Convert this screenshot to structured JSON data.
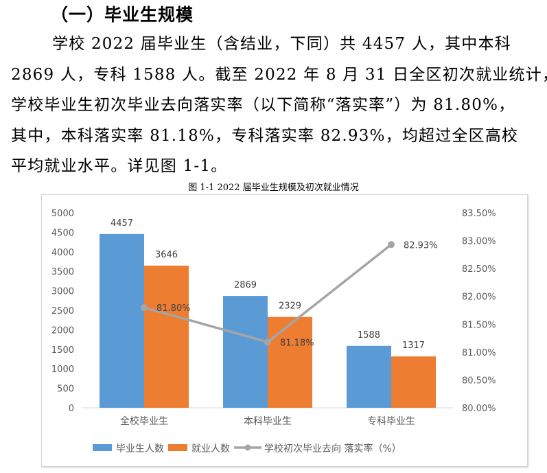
{
  "heading": "（一）毕业生规模",
  "paragraph_lines": [
    "学校 2022 届毕业生（含结业，下同）共 4457 人，其中本科",
    "2869 人，专科 1588 人。截至 2022 年 8 月 31 日全区初次就业统计，",
    "学校毕业生初次毕业去向落实率（以下简称“落实率”）为 81.80%，",
    "其中，本科落实率 81.18%，专科落实率 82.93%，均超过全区高校",
    "平均就业水平。详见图 1-1。"
  ],
  "caption": "图 1-1    2022 届毕业生规模及初次就业情况",
  "chart_data": {
    "type": "bar+line",
    "categories": [
      "全校毕业生",
      "本科毕业生",
      "专科毕业生"
    ],
    "series": [
      {
        "name": "毕业生人数",
        "type": "bar",
        "axis": "left",
        "color": "#5b9bd5",
        "values": [
          4457,
          2869,
          1588
        ],
        "labels": [
          "4457",
          "2869",
          "1588"
        ]
      },
      {
        "name": "就业人数",
        "type": "bar",
        "axis": "left",
        "color": "#ed7d31",
        "values": [
          3646,
          2329,
          1317
        ],
        "labels": [
          "3646",
          "2329",
          "1317"
        ]
      },
      {
        "name": "学校初次毕业去向 落实率（%）",
        "type": "line",
        "axis": "right",
        "color": "#a5a5a5",
        "values": [
          81.8,
          81.18,
          82.93
        ],
        "labels": [
          "81.80%",
          "81.18%",
          "82.93%"
        ]
      }
    ],
    "y_left": {
      "range": [
        0,
        5000
      ],
      "ticks": [
        "0",
        "500",
        "1000",
        "1500",
        "2000",
        "2500",
        "3000",
        "3500",
        "4000",
        "4500",
        "5000"
      ]
    },
    "y_right": {
      "range": [
        80.0,
        83.5
      ],
      "ticks": [
        "80.00%",
        "80.50%",
        "81.00%",
        "81.50%",
        "82.00%",
        "82.50%",
        "83.00%",
        "83.50%"
      ]
    },
    "grid": false,
    "legend_position": "bottom"
  }
}
